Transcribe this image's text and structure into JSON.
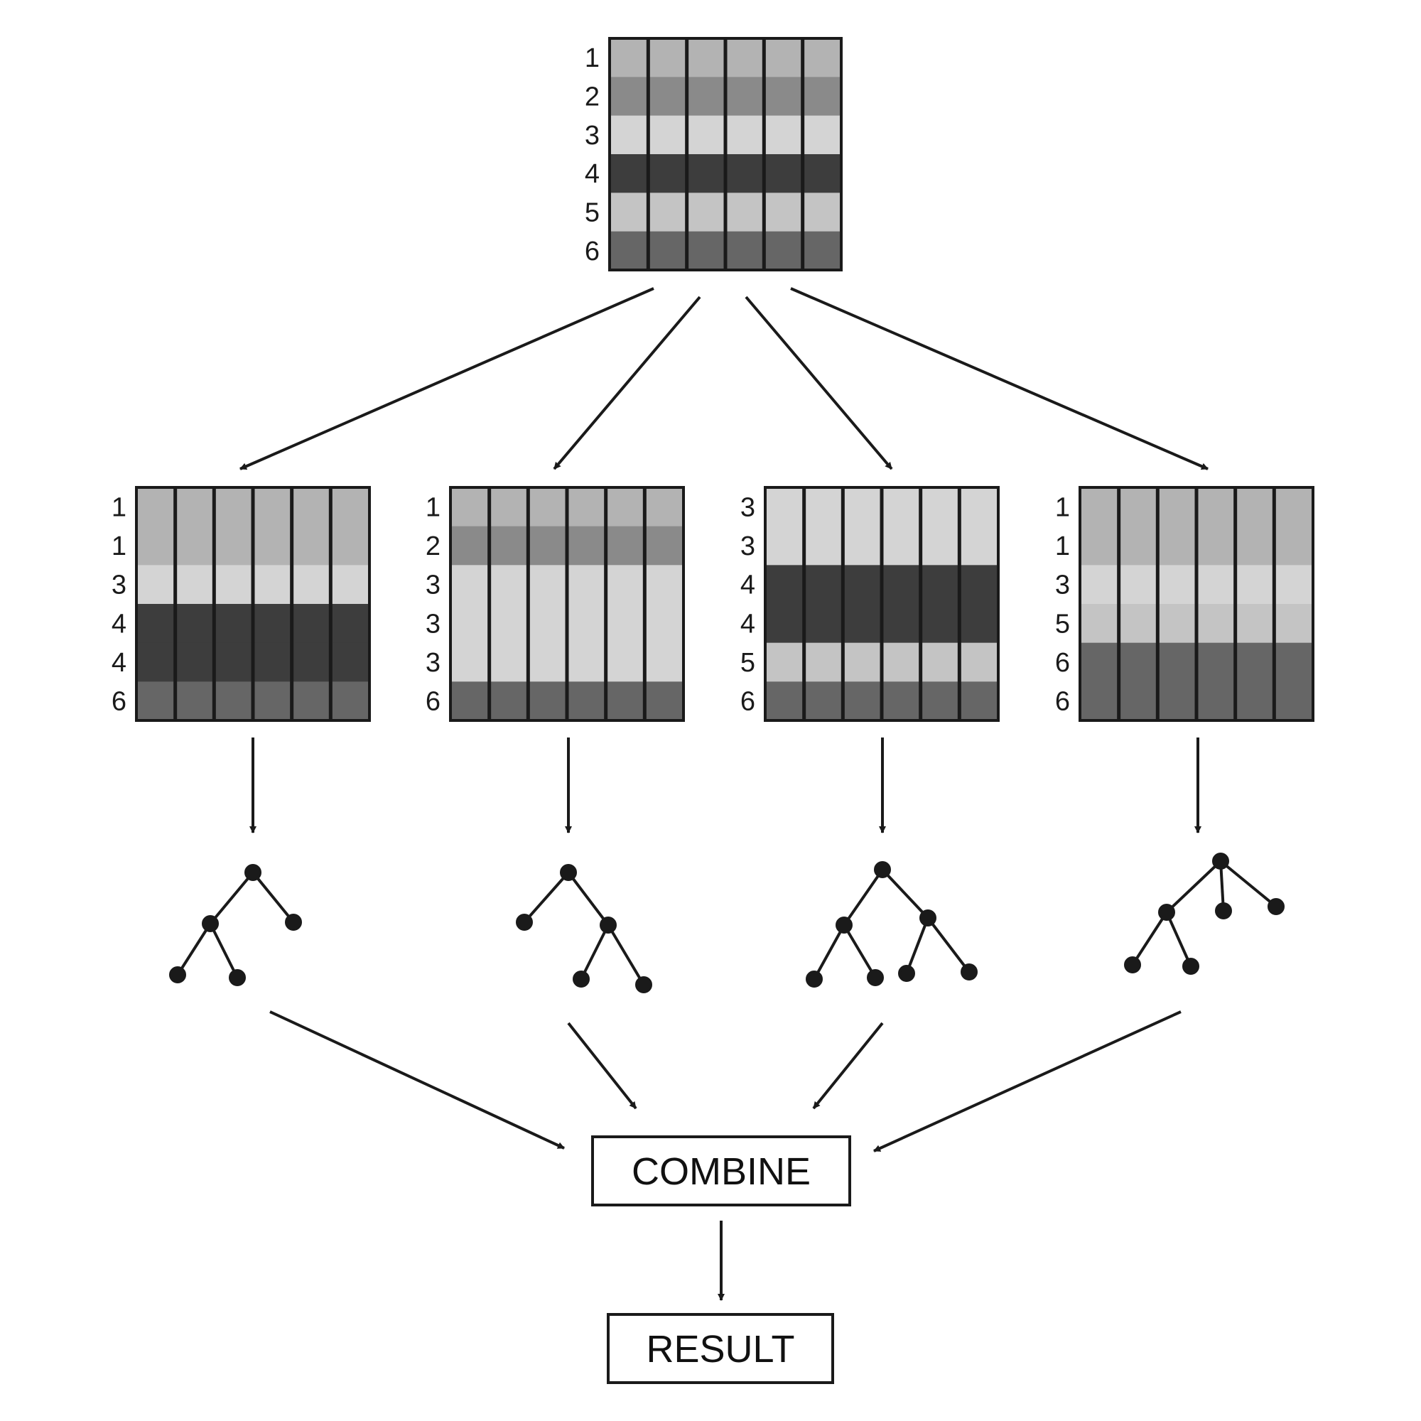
{
  "colors": {
    "ink": "#1a1a1a",
    "row_shades": {
      "1": "#b3b3b3",
      "2": "#8a8a8a",
      "3": "#d4d4d4",
      "4": "#3d3d3d",
      "5": "#c4c4c4",
      "6": "#666666"
    }
  },
  "original_dataset": {
    "row_labels": [
      "1",
      "2",
      "3",
      "4",
      "5",
      "6"
    ],
    "column_count": 6
  },
  "bootstrap_samples": [
    {
      "row_labels": [
        "1",
        "1",
        "3",
        "4",
        "4",
        "6"
      ]
    },
    {
      "row_labels": [
        "1",
        "2",
        "3",
        "3",
        "3",
        "6"
      ]
    },
    {
      "row_labels": [
        "3",
        "3",
        "4",
        "4",
        "5",
        "6"
      ]
    },
    {
      "row_labels": [
        "1",
        "1",
        "3",
        "5",
        "6",
        "6"
      ]
    }
  ],
  "combine_box": {
    "label": "COMBINE"
  },
  "result_box": {
    "label": "RESULT"
  }
}
